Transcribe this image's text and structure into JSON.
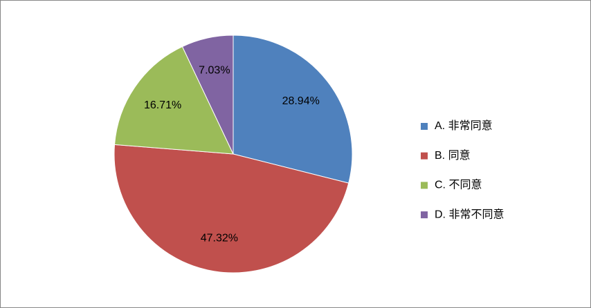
{
  "chart_data": {
    "type": "pie",
    "categories": [
      "A. 非常同意",
      "B. 同意",
      "C. 不同意",
      "D. 非常不同意"
    ],
    "values": [
      28.94,
      47.32,
      16.71,
      7.03
    ],
    "value_labels": [
      "28.94%",
      "47.32%",
      "16.71%",
      "7.03%"
    ],
    "colors": [
      "#4f81bd",
      "#c0504d",
      "#9bbb59",
      "#8064a2"
    ],
    "legend": "right"
  }
}
